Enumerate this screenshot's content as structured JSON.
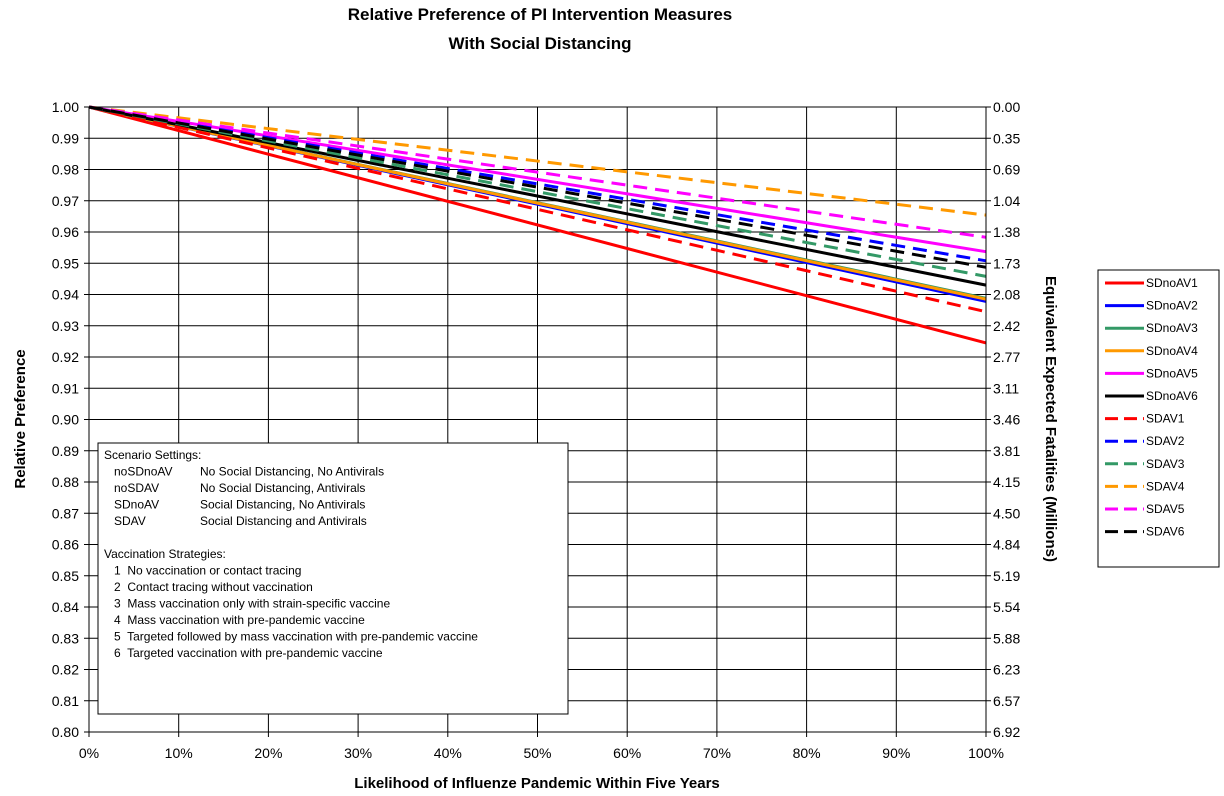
{
  "chart_data": {
    "type": "line",
    "title": "Relative Preference of PI Intervention Measures",
    "subtitle": "With Social Distancing",
    "xlabel": "Likelihood of Influenze Pandemic Within Five Years",
    "ylabel": "Relative Preference",
    "y2label": "Equivalent Expected Fatalities (Millions)",
    "xlim": [
      0,
      100
    ],
    "ylim": [
      0.8,
      1.0
    ],
    "grid": true,
    "legend_position": "right",
    "x_ticks": [
      "0%",
      "10%",
      "20%",
      "30%",
      "40%",
      "50%",
      "60%",
      "70%",
      "80%",
      "90%",
      "100%"
    ],
    "y_ticks": [
      "1.00",
      "0.99",
      "0.98",
      "0.97",
      "0.96",
      "0.95",
      "0.94",
      "0.93",
      "0.92",
      "0.91",
      "0.90",
      "0.89",
      "0.88",
      "0.87",
      "0.86",
      "0.85",
      "0.84",
      "0.83",
      "0.82",
      "0.81",
      "0.80"
    ],
    "y2_ticks": [
      "0.00",
      "0.35",
      "0.69",
      "1.04",
      "1.38",
      "1.73",
      "2.08",
      "2.42",
      "2.77",
      "3.11",
      "3.46",
      "3.81",
      "4.15",
      "4.50",
      "4.84",
      "5.19",
      "5.54",
      "5.88",
      "6.23",
      "6.57",
      "6.92"
    ],
    "x": [
      0,
      100
    ],
    "series": [
      {
        "name": "SDnoAV1",
        "color": "#ff0000",
        "dash": "solid",
        "values": [
          1.0,
          0.9245
        ]
      },
      {
        "name": "SDnoAV2",
        "color": "#0000ff",
        "dash": "solid",
        "values": [
          1.0,
          0.9378
        ]
      },
      {
        "name": "SDnoAV3",
        "color": "#339966",
        "dash": "solid",
        "values": [
          1.0,
          0.9388
        ]
      },
      {
        "name": "SDnoAV4",
        "color": "#ff9900",
        "dash": "solid",
        "values": [
          1.0,
          0.9385
        ]
      },
      {
        "name": "SDnoAV5",
        "color": "#ff00ff",
        "dash": "solid",
        "values": [
          1.0,
          0.9537
        ]
      },
      {
        "name": "SDnoAV6",
        "color": "#000000",
        "dash": "solid",
        "values": [
          1.0,
          0.943
        ]
      },
      {
        "name": "SDAV1",
        "color": "#ff0000",
        "dash": "dashed",
        "values": [
          1.0,
          0.9345
        ]
      },
      {
        "name": "SDAV2",
        "color": "#0000ff",
        "dash": "dashed",
        "values": [
          1.0,
          0.9508
        ]
      },
      {
        "name": "SDAV3",
        "color": "#339966",
        "dash": "dashed",
        "values": [
          1.0,
          0.9458
        ]
      },
      {
        "name": "SDAV4",
        "color": "#ff9900",
        "dash": "dashed",
        "values": [
          1.0,
          0.9654
        ]
      },
      {
        "name": "SDAV5",
        "color": "#ff00ff",
        "dash": "dashed",
        "values": [
          1.0,
          0.9583
        ]
      },
      {
        "name": "SDAV6",
        "color": "#000000",
        "dash": "dashed",
        "values": [
          1.0,
          0.9487
        ]
      }
    ],
    "annotation": {
      "settings_heading": "Scenario Settings:",
      "settings": [
        {
          "code": "noSDnoAV",
          "desc": "No Social Distancing, No Antivirals"
        },
        {
          "code": "noSDAV",
          "desc": "No Social Distancing, Antivirals"
        },
        {
          "code": "SDnoAV",
          "desc": "Social Distancing, No Antivirals"
        },
        {
          "code": "SDAV",
          "desc": "Social Distancing and Antivirals"
        }
      ],
      "strategies_heading": "Vaccination Strategies:",
      "strategies": [
        "1  No vaccination or contact tracing",
        "2  Contact tracing without vaccination",
        "3  Mass vaccination only with strain-specific vaccine",
        "4  Mass vaccination with pre-pandemic vaccine",
        "5  Targeted followed by mass vaccination with pre-pandemic vaccine",
        "6  Targeted vaccination with pre-pandemic vaccine"
      ]
    }
  }
}
